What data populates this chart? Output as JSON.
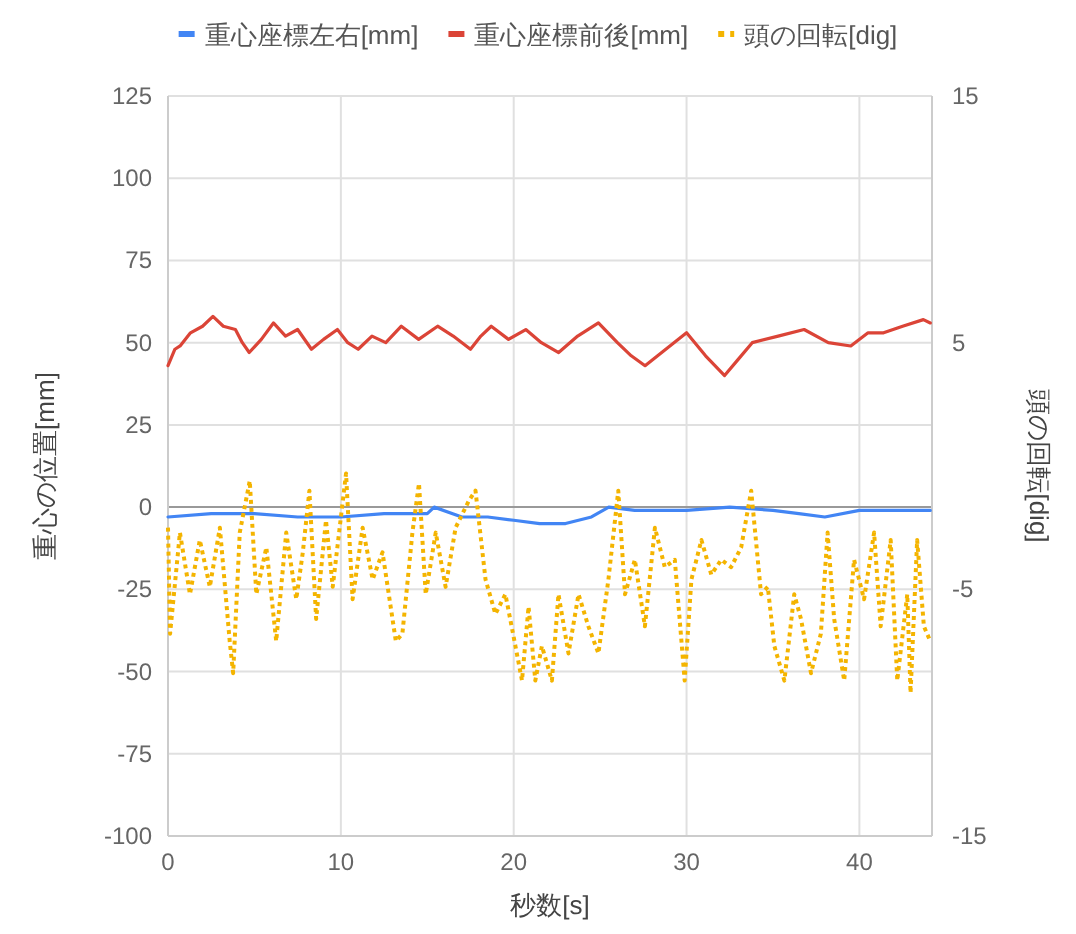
{
  "chart_data": {
    "type": "line",
    "xlabel": "秒数[s]",
    "ylabel": "重心の位置[mm]",
    "y2label": "頭の回転[dig]",
    "xlim": [
      0,
      44.2
    ],
    "xticks": [
      0,
      10,
      20,
      30,
      40
    ],
    "ylim": [
      -100,
      125
    ],
    "yticks": [
      -100,
      -75,
      -50,
      -25,
      0,
      25,
      50,
      75,
      100,
      125
    ],
    "y2lim": [
      -15,
      15
    ],
    "y2ticks": [
      -15,
      -5,
      5,
      15
    ],
    "grid": true,
    "legend": "top",
    "marker": "none",
    "series": [
      {
        "name": "重心座標左右[mm]",
        "color": "#4285f4",
        "line_style": "solid",
        "x": [
          0,
          2.5,
          5,
          7.5,
          10,
          12.5,
          15,
          15.4,
          17,
          18.5,
          20,
          21.5,
          23,
          24.5,
          25.5,
          27,
          30,
          32.5,
          35,
          36.5,
          38,
          40,
          42,
          44.1
        ],
        "values": [
          -3,
          -2,
          -2,
          -3,
          -3,
          -2,
          -2,
          0,
          -3,
          -3,
          -4,
          -5,
          -5,
          -3,
          0,
          -1,
          -1,
          0,
          -1,
          -2,
          -3,
          -1,
          -1,
          -1
        ]
      },
      {
        "name": "重心座標前後[mm]",
        "color": "#db4437",
        "line_style": "solid",
        "x": [
          0,
          0.4,
          0.7,
          1.3,
          2,
          2.6,
          3.2,
          3.9,
          4.3,
          4.7,
          5.4,
          6.1,
          6.8,
          7.5,
          8.3,
          9,
          9.8,
          10.4,
          11,
          11.8,
          12.6,
          13.5,
          14.5,
          15.6,
          16.5,
          17.5,
          18.1,
          18.7,
          19.7,
          20.7,
          21.6,
          22.6,
          23.7,
          24.9,
          26,
          26.8,
          27.6,
          28.8,
          30,
          31.1,
          32.2,
          33,
          33.8,
          35.3,
          36.8,
          38.2,
          39.5,
          40.5,
          41.4,
          42.5,
          43.7,
          44.1
        ],
        "values": [
          43,
          48,
          49,
          53,
          55,
          58,
          55,
          54,
          50,
          47,
          51,
          56,
          52,
          54,
          48,
          51,
          54,
          50,
          48,
          52,
          50,
          55,
          51,
          55,
          52,
          48,
          52,
          55,
          51,
          54,
          50,
          47,
          52,
          56,
          50,
          46,
          43,
          48,
          53,
          46,
          40,
          45,
          50,
          52,
          54,
          50,
          49,
          53,
          53,
          55,
          57,
          56
        ]
      },
      {
        "name": "頭の回転[dig]",
        "color": "#f4b400",
        "axis": "y2",
        "line_style": "dotted",
        "x": [
          0,
          0.12,
          0.69,
          1.27,
          1.84,
          2.42,
          3.0,
          3.57,
          3.77,
          4.15,
          4.73,
          5.11,
          5.69,
          6.26,
          6.84,
          7.42,
          7.8,
          8.18,
          8.57,
          9.14,
          9.53,
          10.3,
          10.68,
          11.26,
          11.84,
          12.41,
          13.18,
          13.56,
          14.14,
          14.52,
          14.91,
          15.49,
          16.06,
          16.64,
          17.41,
          17.79,
          18.37,
          18.94,
          19.52,
          20.1,
          20.48,
          20.86,
          21.25,
          21.63,
          22.21,
          22.59,
          23.17,
          23.75,
          24.32,
          24.9,
          25.48,
          26.05,
          26.44,
          27.01,
          27.59,
          28.17,
          28.74,
          29.32,
          29.89,
          30.28,
          30.86,
          31.43,
          32.01,
          32.58,
          33.16,
          33.74,
          34.31,
          34.7,
          35.08,
          35.66,
          36.23,
          36.62,
          37.2,
          37.77,
          38.16,
          38.54,
          39.12,
          39.69,
          40.27,
          40.85,
          41.23,
          41.81,
          42.19,
          42.77,
          42.96,
          43.34,
          43.73,
          44.1
        ],
        "values": [
          -2.5,
          -6.8,
          -2.7,
          -5.2,
          -3.0,
          -4.9,
          -2.5,
          -7.1,
          -8.4,
          -2.7,
          -0.6,
          -5.2,
          -3.3,
          -7.1,
          -2.7,
          -5.4,
          -3.5,
          -1.0,
          -6.2,
          -2.2,
          -4.9,
          -0.3,
          -5.4,
          -2.5,
          -4.6,
          -3.5,
          -7.1,
          -6.8,
          -2.7,
          -0.7,
          -5.2,
          -2.7,
          -4.9,
          -2.5,
          -1.4,
          -1.0,
          -4.6,
          -6.0,
          -5.2,
          -7.3,
          -8.7,
          -5.7,
          -8.7,
          -7.3,
          -8.7,
          -5.2,
          -7.6,
          -5.2,
          -6.5,
          -7.6,
          -4.6,
          -1.0,
          -5.2,
          -3.8,
          -6.5,
          -2.5,
          -4.1,
          -3.8,
          -8.7,
          -4.6,
          -3.0,
          -4.4,
          -3.8,
          -4.1,
          -3.3,
          -1.0,
          -5.2,
          -4.9,
          -7.3,
          -8.7,
          -5.2,
          -6.2,
          -8.4,
          -6.8,
          -2.7,
          -6.2,
          -8.7,
          -3.8,
          -5.4,
          -2.7,
          -6.5,
          -3.0,
          -8.7,
          -5.2,
          -9.2,
          -3.0,
          -6.5,
          -7.1
        ]
      }
    ]
  }
}
